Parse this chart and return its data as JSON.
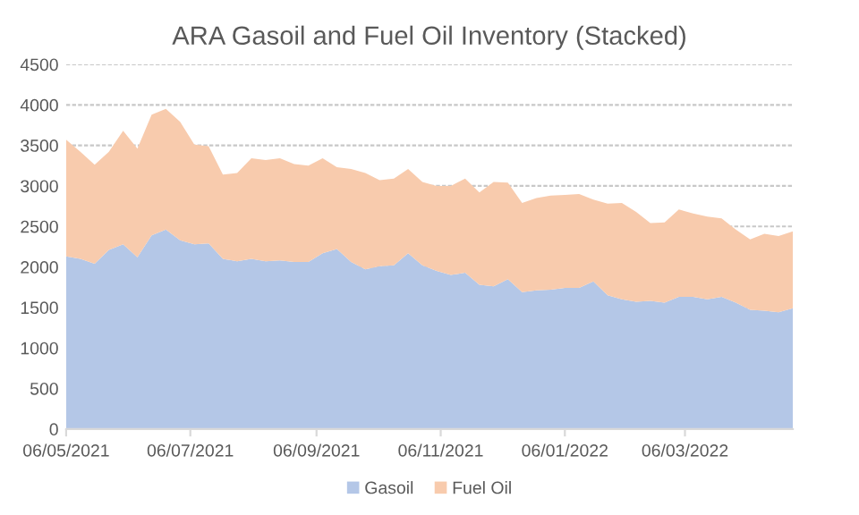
{
  "chart_data": {
    "type": "area",
    "title": "ARA Gasoil and Fuel Oil Inventory (Stacked)",
    "stacked": true,
    "x": [
      "2021-05-06",
      "2021-05-13",
      "2021-05-20",
      "2021-05-27",
      "2021-06-03",
      "2021-06-10",
      "2021-06-17",
      "2021-06-24",
      "2021-07-01",
      "2021-07-08",
      "2021-07-15",
      "2021-07-22",
      "2021-07-29",
      "2021-08-05",
      "2021-08-12",
      "2021-08-19",
      "2021-08-26",
      "2021-09-02",
      "2021-09-09",
      "2021-09-16",
      "2021-09-23",
      "2021-09-30",
      "2021-10-07",
      "2021-10-14",
      "2021-10-21",
      "2021-10-28",
      "2021-11-04",
      "2021-11-11",
      "2021-11-18",
      "2021-11-25",
      "2021-12-02",
      "2021-12-09",
      "2021-12-16",
      "2021-12-23",
      "2021-12-30",
      "2022-01-06",
      "2022-01-13",
      "2022-01-20",
      "2022-01-27",
      "2022-02-03",
      "2022-02-10",
      "2022-02-17",
      "2022-02-24",
      "2022-03-03",
      "2022-03-10",
      "2022-03-17",
      "2022-03-24",
      "2022-03-31",
      "2022-04-07",
      "2022-04-14",
      "2022-04-21",
      "2022-04-28"
    ],
    "series": [
      {
        "name": "Gasoil",
        "color": "#b4c7e7",
        "values": [
          2130,
          2100,
          2040,
          2210,
          2280,
          2120,
          2390,
          2460,
          2330,
          2280,
          2290,
          2100,
          2070,
          2100,
          2070,
          2080,
          2060,
          2060,
          2170,
          2220,
          2060,
          1970,
          2010,
          2020,
          2170,
          2020,
          1950,
          1900,
          1930,
          1780,
          1760,
          1850,
          1690,
          1710,
          1720,
          1740,
          1740,
          1820,
          1650,
          1600,
          1570,
          1580,
          1560,
          1630,
          1630,
          1600,
          1630,
          1560,
          1470,
          1460,
          1440,
          1490
        ]
      },
      {
        "name": "Fuel Oil",
        "color": "#f8cbad",
        "values": [
          1440,
          1320,
          1220,
          1210,
          1400,
          1340,
          1490,
          1490,
          1460,
          1230,
          1200,
          1040,
          1090,
          1240,
          1250,
          1260,
          1210,
          1190,
          1170,
          1010,
          1150,
          1190,
          1060,
          1070,
          1040,
          1030,
          1050,
          1100,
          1160,
          1140,
          1290,
          1190,
          1100,
          1140,
          1160,
          1150,
          1160,
          1010,
          1130,
          1190,
          1110,
          960,
          990,
          1080,
          1030,
          1020,
          970,
          900,
          870,
          950,
          940,
          950
        ]
      }
    ],
    "xlim": [
      "2021-05-06",
      "2022-04-28"
    ],
    "xticks": [
      {
        "value": "2021-05-06",
        "label": "06/05/2021"
      },
      {
        "value": "2021-07-06",
        "label": "06/07/2021"
      },
      {
        "value": "2021-09-06",
        "label": "06/09/2021"
      },
      {
        "value": "2021-11-06",
        "label": "06/11/2021"
      },
      {
        "value": "2022-01-06",
        "label": "06/01/2022"
      },
      {
        "value": "2022-03-06",
        "label": "06/03/2022"
      }
    ],
    "ylim": [
      0,
      4500
    ],
    "yticks": [
      0,
      500,
      1000,
      1500,
      2000,
      2500,
      3000,
      3500,
      4000,
      4500
    ],
    "grid": "y",
    "legend": "bottom"
  }
}
